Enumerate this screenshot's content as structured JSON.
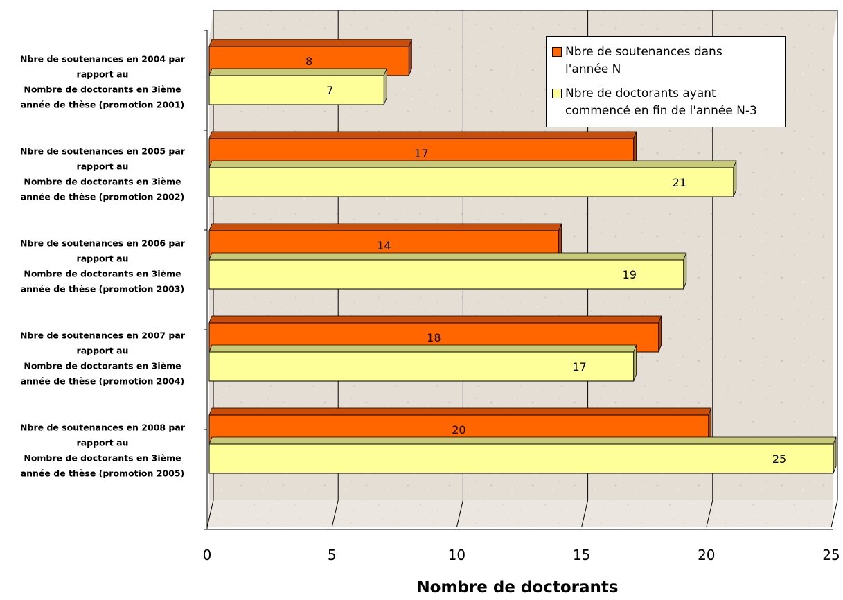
{
  "chart_data": {
    "type": "bar",
    "orientation": "horizontal",
    "style": "3d",
    "categories": [
      [
        "Nbre de soutenances en 2004 par",
        "rapport au",
        "Nombre de doctorants en 3ième",
        "année de thèse (promotion 2001)"
      ],
      [
        "Nbre de soutenances en 2005 par",
        "rapport au",
        "Nombre de doctorants en 3ième",
        "année de thèse (promotion 2002)"
      ],
      [
        "Nbre de soutenances en 2006 par",
        "rapport au",
        "Nombre de doctorants en 3ième",
        "année de thèse (promotion 2003)"
      ],
      [
        "Nbre de soutenances en 2007 par",
        "rapport au",
        "Nombre de doctorants en 3ième",
        "année de thèse (promotion 2004)"
      ],
      [
        "Nbre de soutenances en 2008 par",
        "rapport au",
        "Nombre de doctorants en 3ième",
        "année de thèse (promotion 2005)"
      ]
    ],
    "series": [
      {
        "name": "Nbre de soutenances dans l'année N",
        "values": [
          8,
          17,
          14,
          18,
          20
        ],
        "color": "#FF6600"
      },
      {
        "name": "Nbre de doctorants ayant commencé en fin de l'année N-3",
        "values": [
          7,
          21,
          19,
          17,
          25
        ],
        "color": "#FFFF99"
      }
    ],
    "xlabel": "Nombre de doctorants",
    "ylabel": "",
    "xlim": [
      0,
      25
    ],
    "xticks": [
      0,
      5,
      10,
      15,
      20,
      25
    ],
    "grid": true,
    "legend_position": "top-right",
    "data_labels": true
  },
  "legend": {
    "items": [
      {
        "label": "Nbre de soutenances dans\nl'année N"
      },
      {
        "label": "Nbre de doctorants ayant\ncommencé en fin de l'année N-3"
      }
    ]
  }
}
